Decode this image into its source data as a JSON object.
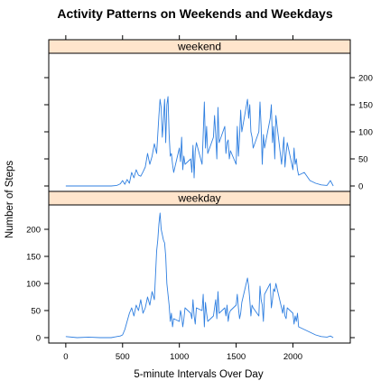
{
  "chart_data": {
    "type": "line",
    "title": "Activity Patterns on Weekends and Weekdays",
    "xlabel": "5-minute Intervals Over Day",
    "ylabel": "Number of Steps",
    "xlim": [
      -150,
      2505
    ],
    "ylim": [
      -10,
      245
    ],
    "x_ticks": [
      0,
      500,
      1000,
      1500,
      2000
    ],
    "y_ticks": [
      0,
      50,
      100,
      150,
      200
    ],
    "colors": {
      "line": "#2f7fe0",
      "strip": "#ffe5cc",
      "axis": "#000000"
    },
    "panels": [
      {
        "name": "weekend",
        "y_axis_side": "right",
        "x": [
          0,
          100,
          200,
          300,
          400,
          450,
          480,
          500,
          520,
          540,
          560,
          580,
          600,
          620,
          640,
          660,
          680,
          700,
          720,
          740,
          760,
          780,
          800,
          810,
          820,
          830,
          840,
          850,
          860,
          870,
          880,
          890,
          900,
          910,
          920,
          930,
          940,
          950,
          1000,
          1010,
          1020,
          1030,
          1040,
          1050,
          1100,
          1110,
          1120,
          1130,
          1140,
          1150,
          1200,
          1210,
          1220,
          1230,
          1240,
          1250,
          1300,
          1310,
          1320,
          1330,
          1340,
          1350,
          1400,
          1410,
          1420,
          1430,
          1440,
          1450,
          1500,
          1510,
          1520,
          1530,
          1540,
          1550,
          1600,
          1610,
          1620,
          1630,
          1640,
          1650,
          1700,
          1710,
          1720,
          1730,
          1740,
          1750,
          1800,
          1810,
          1820,
          1830,
          1840,
          1850,
          1900,
          1910,
          1920,
          1930,
          1940,
          1950,
          2000,
          2010,
          2020,
          2030,
          2040,
          2050,
          2100,
          2150,
          2200,
          2250,
          2300,
          2330,
          2355
        ],
        "values": [
          0,
          0,
          0,
          0,
          0,
          1,
          4,
          10,
          3,
          12,
          5,
          25,
          15,
          30,
          20,
          18,
          26,
          35,
          60,
          40,
          55,
          78,
          60,
          95,
          130,
          160,
          145,
          90,
          120,
          160,
          80,
          150,
          165,
          95,
          55,
          60,
          40,
          25,
          70,
          45,
          90,
          30,
          55,
          40,
          50,
          25,
          75,
          15,
          65,
          80,
          40,
          95,
          155,
          70,
          110,
          60,
          90,
          130,
          95,
          50,
          145,
          80,
          110,
          60,
          80,
          85,
          50,
          65,
          40,
          110,
          55,
          90,
          140,
          100,
          160,
          125,
          150,
          100,
          90,
          70,
          100,
          155,
          110,
          40,
          95,
          70,
          125,
          150,
          80,
          110,
          50,
          130,
          40,
          65,
          90,
          35,
          60,
          80,
          30,
          70,
          40,
          50,
          30,
          20,
          25,
          10,
          5,
          2,
          1,
          10,
          0
        ]
      },
      {
        "name": "weekday",
        "y_axis_side": "left",
        "x": [
          0,
          100,
          200,
          300,
          400,
          450,
          480,
          500,
          520,
          540,
          560,
          580,
          600,
          620,
          640,
          660,
          680,
          700,
          720,
          740,
          760,
          780,
          800,
          810,
          820,
          830,
          840,
          850,
          860,
          870,
          880,
          890,
          900,
          910,
          920,
          930,
          940,
          950,
          1000,
          1010,
          1020,
          1030,
          1040,
          1050,
          1100,
          1110,
          1120,
          1130,
          1140,
          1150,
          1200,
          1210,
          1220,
          1230,
          1240,
          1250,
          1300,
          1310,
          1320,
          1330,
          1340,
          1350,
          1400,
          1410,
          1420,
          1430,
          1440,
          1450,
          1500,
          1510,
          1520,
          1530,
          1540,
          1550,
          1600,
          1610,
          1620,
          1630,
          1640,
          1650,
          1700,
          1710,
          1720,
          1730,
          1740,
          1750,
          1800,
          1810,
          1820,
          1830,
          1840,
          1850,
          1900,
          1910,
          1920,
          1930,
          1940,
          1950,
          2000,
          2010,
          2020,
          2030,
          2040,
          2050,
          2100,
          2150,
          2200,
          2250,
          2300,
          2330,
          2355
        ],
        "values": [
          2,
          0,
          1,
          0,
          0,
          2,
          3,
          5,
          15,
          30,
          45,
          55,
          40,
          60,
          50,
          70,
          45,
          55,
          75,
          60,
          85,
          70,
          160,
          180,
          210,
          230,
          200,
          190,
          180,
          175,
          150,
          100,
          80,
          60,
          30,
          45,
          20,
          35,
          30,
          50,
          40,
          20,
          35,
          55,
          45,
          35,
          70,
          40,
          25,
          55,
          50,
          80,
          20,
          65,
          45,
          30,
          40,
          55,
          70,
          35,
          85,
          45,
          55,
          40,
          60,
          30,
          45,
          50,
          60,
          80,
          55,
          35,
          45,
          65,
          110,
          95,
          70,
          40,
          60,
          55,
          40,
          95,
          70,
          60,
          30,
          80,
          100,
          55,
          70,
          90,
          85,
          100,
          55,
          45,
          60,
          40,
          35,
          55,
          45,
          25,
          40,
          30,
          45,
          20,
          15,
          10,
          5,
          2,
          1,
          3,
          0
        ]
      }
    ]
  }
}
